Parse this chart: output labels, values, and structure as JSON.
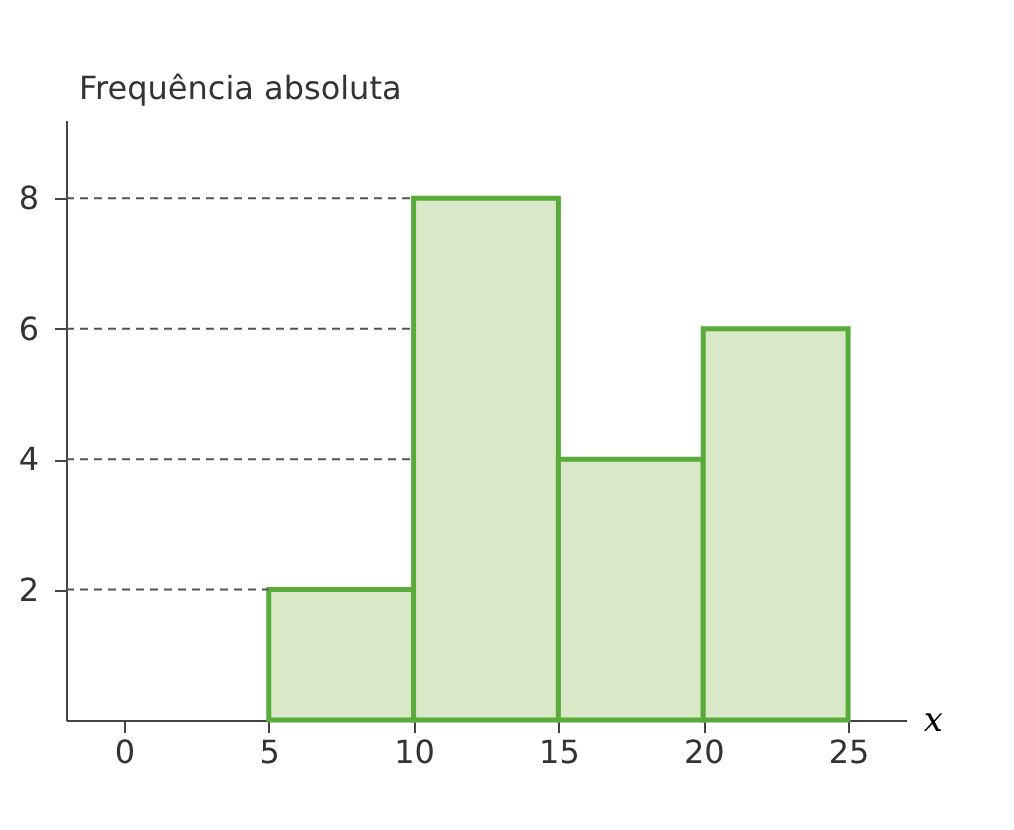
{
  "chart_data": {
    "type": "histogram",
    "xlabel": "x",
    "ylabel": "Frequência absoluta",
    "bins": [
      5,
      10,
      15,
      20,
      25
    ],
    "values": [
      2,
      8,
      4,
      6
    ],
    "color": "#d9e8c6",
    "xlim": [
      -2,
      27
    ],
    "xticks": [
      0,
      5,
      10,
      15,
      20,
      25
    ],
    "ylim": [
      0,
      9.2
    ],
    "yticks": [
      2,
      4,
      6,
      8
    ],
    "ref_lines": [
      {
        "axis": "y",
        "value": 2,
        "color": "#555555",
        "line_style": "dashed"
      },
      {
        "axis": "y",
        "value": 4,
        "color": "#555555",
        "line_style": "dashed"
      },
      {
        "axis": "y",
        "value": 6,
        "color": "#555555",
        "line_style": "dashed"
      },
      {
        "axis": "y",
        "value": 8,
        "color": "#555555",
        "line_style": "dashed"
      }
    ]
  }
}
